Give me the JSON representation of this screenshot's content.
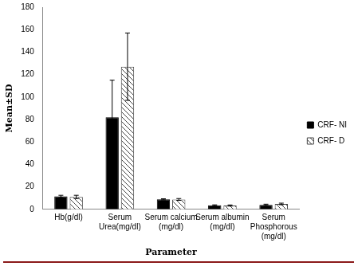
{
  "chart_data": {
    "type": "bar",
    "x_label": "Parameter",
    "y_label": "Mean±SD",
    "categories": [
      "Hb(g/dl)",
      "Serum Urea(mg/dl)",
      "Serum calcium (mg/dl)",
      "Serum albumin (mg/dl)",
      "Serum Phosphorous (mg/dl)"
    ],
    "series": [
      {
        "name": "CRF- NI",
        "color": "#000000",
        "values": [
          11.5,
          82,
          8.9,
          3.6,
          4.0
        ],
        "errors": [
          1,
          33,
          0.5,
          0.4,
          0.6
        ]
      },
      {
        "name": "CRF- D",
        "color": "#444444",
        "values": [
          11,
          127,
          8.8,
          3.4,
          4.8
        ],
        "errors": [
          1.5,
          30,
          0.8,
          0.5,
          0.7
        ]
      }
    ],
    "ylim": [
      0,
      180
    ],
    "yticks": [
      0,
      20,
      40,
      60,
      80,
      100,
      120,
      140,
      160,
      180
    ],
    "grid": false,
    "legend": "right"
  }
}
